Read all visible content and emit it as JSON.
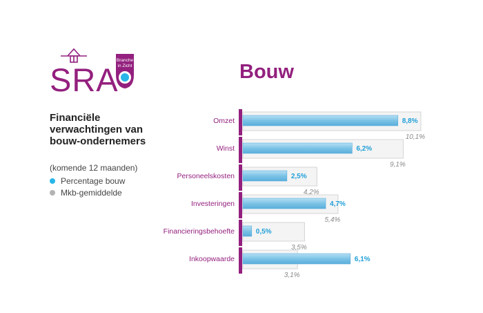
{
  "logo": {
    "text": "SRA",
    "badge_line1": "Branche",
    "badge_line2": "in Zicht"
  },
  "heading": "Bouw",
  "title": "Financiële verwachtingen van bouw-ondernemers",
  "subtitle": "(komende 12 maanden)",
  "legend": [
    {
      "label": "Percentage bouw",
      "color": "#29b6e8"
    },
    {
      "label": "Mkb-gemiddelde",
      "color": "#b3b3b3"
    }
  ],
  "colors": {
    "brand": "#93207e",
    "bar": "#7cc3e6",
    "value_text": "#1f9fd8",
    "avg_text": "#8a8a8a"
  },
  "chart_data": {
    "type": "bar",
    "orientation": "horizontal",
    "categories": [
      "Omzet",
      "Winst",
      "Personeelskosten",
      "Investeringen",
      "Financieringsbehoefte",
      "Inkoopwaarde"
    ],
    "series": [
      {
        "name": "Percentage bouw",
        "values": [
          8.8,
          6.2,
          2.5,
          4.7,
          0.5,
          6.1
        ],
        "labels": [
          "8,8%",
          "6,2%",
          "2,5%",
          "4,7%",
          "0,5%",
          "6,1%"
        ]
      },
      {
        "name": "Mkb-gemiddelde",
        "values": [
          10.1,
          9.1,
          4.2,
          5.4,
          3.5,
          3.1
        ],
        "labels": [
          "10,1%",
          "9,1%",
          "4,2%",
          "5,4%",
          "3,5%",
          "3,1%"
        ]
      }
    ],
    "xlim": [
      0,
      11.2
    ]
  }
}
